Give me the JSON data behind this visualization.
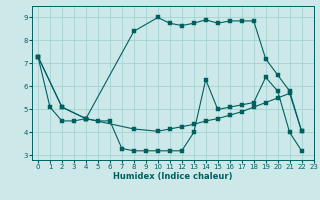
{
  "xlabel": "Humidex (Indice chaleur)",
  "xlim": [
    -0.5,
    23
  ],
  "ylim": [
    2.8,
    9.5
  ],
  "xticks": [
    0,
    1,
    2,
    3,
    4,
    5,
    6,
    7,
    8,
    9,
    10,
    11,
    12,
    13,
    14,
    15,
    16,
    17,
    18,
    19,
    20,
    21,
    22,
    23
  ],
  "yticks": [
    3,
    4,
    5,
    6,
    7,
    8,
    9
  ],
  "bg_color": "#cde8e8",
  "grid_color": "#9ecece",
  "line_color": "#006060",
  "curve1_x": [
    0,
    1,
    2,
    3,
    4,
    5,
    6,
    7,
    8,
    9,
    10,
    11,
    12,
    13,
    14,
    15,
    16,
    17,
    18,
    19,
    20,
    21,
    22
  ],
  "curve1_y": [
    7.3,
    5.1,
    4.5,
    4.5,
    4.6,
    4.5,
    4.5,
    3.3,
    3.2,
    3.2,
    3.2,
    3.2,
    3.2,
    4.0,
    6.3,
    5.0,
    5.1,
    5.2,
    5.3,
    6.4,
    5.8,
    4.0,
    3.2
  ],
  "curve2_x": [
    0,
    2,
    4,
    8,
    10,
    11,
    12,
    13,
    14,
    15,
    16,
    17,
    18,
    19,
    20,
    21,
    22
  ],
  "curve2_y": [
    7.3,
    5.1,
    4.6,
    8.4,
    9.0,
    8.75,
    8.65,
    8.75,
    8.9,
    8.75,
    8.85,
    8.85,
    8.85,
    7.2,
    6.5,
    5.8,
    4.05
  ],
  "curve3_x": [
    0,
    2,
    4,
    8,
    10,
    11,
    12,
    13,
    14,
    15,
    16,
    17,
    18,
    19,
    20,
    21,
    22
  ],
  "curve3_y": [
    7.3,
    5.1,
    4.6,
    4.15,
    4.05,
    4.15,
    4.25,
    4.35,
    4.5,
    4.6,
    4.75,
    4.9,
    5.1,
    5.3,
    5.5,
    5.7,
    4.05
  ]
}
